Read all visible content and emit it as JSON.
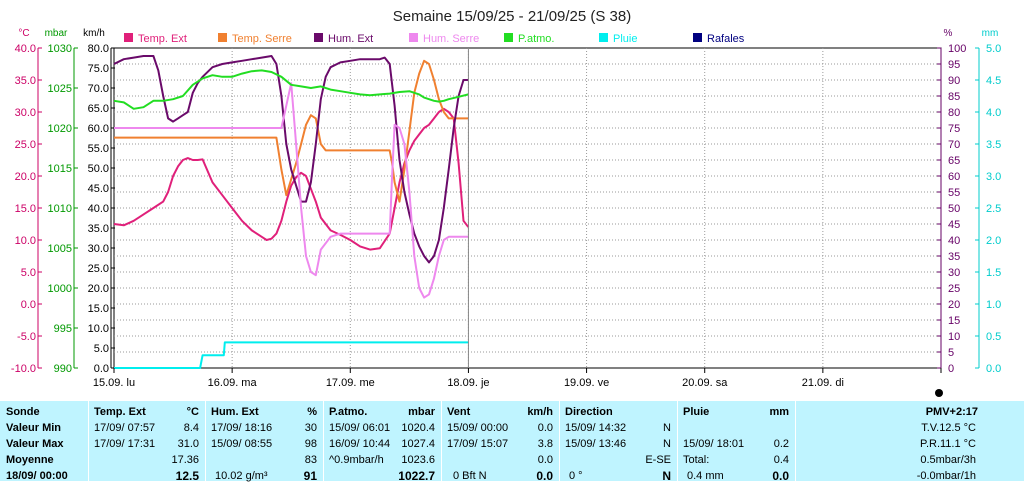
{
  "chart_data": {
    "type": "line",
    "title": "Semaine 15/09/25 - 21/09/25 (S 38)",
    "x_unit": "hours since 15.09 00:00",
    "xlim": [
      0,
      168
    ],
    "x_ticks": [
      {
        "x": 0,
        "label": "15.09.  lu"
      },
      {
        "x": 24,
        "label": "16.09.  ma"
      },
      {
        "x": 48,
        "label": "17.09.  me"
      },
      {
        "x": 72,
        "label": "18.09.  je"
      },
      {
        "x": 96,
        "label": "19.09.  ve"
      },
      {
        "x": 120,
        "label": "20.09.  sa"
      },
      {
        "x": 144,
        "label": "21.09.  di"
      }
    ],
    "axes": {
      "temp": {
        "unit": "°C",
        "color": "#cc0066",
        "min": -10,
        "max": 40,
        "ticks": [
          "40.0",
          "35.0",
          "30.0",
          "25.0",
          "20.0",
          "15.0",
          "10.0",
          "5.0",
          "0.0",
          "-5.0",
          "-10.0"
        ]
      },
      "pressure": {
        "unit": "mbar",
        "color": "#009900",
        "min": 990,
        "max": 1030,
        "ticks": [
          "1030",
          "1025",
          "1020",
          "1015",
          "1010",
          "1005",
          "1000",
          "995",
          "990"
        ]
      },
      "wind": {
        "unit": "km/h",
        "color": "#000000",
        "min": 0,
        "max": 80,
        "ticks": [
          "80.0",
          "75.0",
          "70.0",
          "65.0",
          "60.0",
          "55.0",
          "50.0",
          "45.0",
          "40.0",
          "35.0",
          "30.0",
          "25.0",
          "20.0",
          "15.0",
          "10.0",
          "5.0",
          "0.0"
        ]
      },
      "hum": {
        "unit": "%",
        "color": "#660066",
        "min": 0,
        "max": 100,
        "ticks": [
          "100",
          "95",
          "90",
          "85",
          "80",
          "75",
          "70",
          "65",
          "60",
          "55",
          "50",
          "45",
          "40",
          "35",
          "30",
          "25",
          "20",
          "15",
          "10",
          "5",
          "0"
        ]
      },
      "rain": {
        "unit": "mm",
        "color": "#00cccc",
        "min": 0,
        "max": 5,
        "ticks": [
          "5.0",
          "4.5",
          "4.0",
          "3.5",
          "3.0",
          "2.5",
          "2.0",
          "1.5",
          "1.0",
          "0.5",
          "0.0"
        ]
      }
    },
    "legend": [
      {
        "label": "Temp. Ext",
        "color": "#e0207a"
      },
      {
        "label": "Temp. Serre",
        "color": "#f08030"
      },
      {
        "label": "Hum. Ext",
        "color": "#6a0a6a"
      },
      {
        "label": "Hum. Serre",
        "color": "#ee88ee"
      },
      {
        "label": "P.atmo.",
        "color": "#22dd22"
      },
      {
        "label": "Pluie",
        "color": "#00eeee"
      },
      {
        "label": "Rafales",
        "color": "#000080"
      }
    ],
    "series": [
      {
        "name": "Temp. Ext",
        "axis": "temp",
        "color": "#e0207a",
        "x": [
          0,
          2,
          4,
          6,
          8,
          10,
          11,
          12,
          13,
          14,
          15,
          16,
          17,
          18,
          20,
          22,
          24,
          26,
          28,
          30,
          31,
          32,
          33,
          34,
          35,
          36,
          37,
          38,
          39,
          40,
          41,
          42,
          44,
          46,
          48,
          50,
          52,
          54,
          56,
          57,
          58,
          59,
          60,
          61,
          62,
          63,
          64,
          65,
          66,
          67,
          68,
          69,
          70,
          71,
          72
        ],
        "y": [
          12.5,
          12.3,
          13,
          14,
          15,
          16,
          17.5,
          20,
          21.5,
          22.5,
          22.8,
          22.5,
          22.5,
          22.6,
          19,
          17,
          15,
          13,
          11.5,
          10.5,
          10,
          10.2,
          11,
          13,
          16,
          18.5,
          19.8,
          20.5,
          20,
          18,
          16,
          13.5,
          11.5,
          10.8,
          10,
          9,
          8.5,
          8.7,
          11,
          15,
          19,
          22,
          24,
          25.5,
          26.5,
          27.5,
          28,
          29,
          30,
          30.5,
          30,
          29,
          22,
          13,
          12
        ]
      },
      {
        "name": "Temp. Serre",
        "axis": "temp",
        "color": "#f08030",
        "x": [
          0,
          33,
          34,
          35,
          36,
          37,
          38,
          39,
          40,
          41,
          42,
          43,
          48,
          52,
          56,
          56.5,
          57,
          58,
          59,
          60,
          61,
          62,
          63,
          64,
          65,
          66,
          67,
          68,
          72
        ],
        "y": [
          26,
          26,
          21,
          17,
          19.5,
          22,
          25,
          28,
          29.5,
          29,
          25,
          24,
          24,
          24,
          24,
          22,
          19,
          16,
          21,
          27,
          33,
          36,
          38,
          37.5,
          35,
          32,
          30,
          29,
          29
        ]
      },
      {
        "name": "Hum. Ext",
        "axis": "hum",
        "color": "#6a0a6a",
        "x": [
          0,
          2,
          4,
          6,
          8,
          9,
          10,
          11,
          12,
          13,
          14,
          15,
          16,
          17,
          18,
          20,
          22,
          24,
          26,
          28,
          30,
          32,
          33,
          34,
          35,
          36,
          37,
          38,
          39,
          40,
          41,
          42,
          43,
          44,
          46,
          48,
          50,
          52,
          54,
          55,
          56,
          57,
          58,
          59,
          60,
          61,
          62,
          63,
          64,
          65,
          66,
          67,
          68,
          69,
          70,
          71,
          72
        ],
        "y": [
          95,
          96.5,
          97,
          97.5,
          97.5,
          93,
          85,
          78,
          77,
          78,
          79,
          80,
          86,
          89,
          91,
          94,
          95,
          95.5,
          96,
          96.5,
          97,
          97.5,
          95,
          85,
          70,
          62,
          57,
          52,
          52,
          58,
          70,
          84,
          91,
          94,
          95.5,
          96,
          96.5,
          96.5,
          96.5,
          97,
          95,
          82,
          65,
          55,
          48,
          42,
          38,
          35,
          33,
          35,
          40,
          50,
          62,
          75,
          85,
          90,
          90
        ]
      },
      {
        "name": "Hum. Serre",
        "axis": "hum",
        "color": "#ee88ee",
        "x": [
          0,
          10,
          20,
          30,
          34,
          35,
          36,
          37,
          38,
          39,
          40,
          41,
          42,
          44,
          46,
          48,
          50,
          52,
          56,
          56.5,
          57,
          58,
          59,
          60,
          61,
          62,
          63,
          64,
          65,
          66,
          67,
          68,
          69,
          70,
          71,
          72
        ],
        "y": [
          75,
          75,
          75,
          75,
          75,
          82,
          89,
          70,
          50,
          35,
          30,
          29,
          37,
          41,
          42,
          42,
          42,
          42,
          42,
          60,
          76,
          75,
          70,
          55,
          35,
          25,
          22,
          23,
          28,
          35,
          40,
          41,
          41,
          41,
          41,
          41
        ]
      },
      {
        "name": "P.atmo.",
        "axis": "pressure",
        "color": "#22dd22",
        "x": [
          0,
          2,
          4,
          6,
          8,
          10,
          12,
          14,
          16,
          18,
          20,
          22,
          24,
          26,
          28,
          30,
          32,
          34,
          36,
          38,
          40,
          42,
          44,
          46,
          48,
          50,
          52,
          54,
          56,
          58,
          60,
          62,
          63,
          64,
          65,
          66,
          67,
          68,
          70,
          72
        ],
        "y": [
          1023.4,
          1023.2,
          1022.4,
          1022.6,
          1023.4,
          1023.4,
          1023.6,
          1024,
          1025.4,
          1026.2,
          1026.6,
          1026.4,
          1026.4,
          1026.8,
          1027.1,
          1027.2,
          1027.0,
          1026.4,
          1025.4,
          1025.2,
          1025.0,
          1025.2,
          1024.8,
          1024.6,
          1024.4,
          1024.2,
          1024.1,
          1024.2,
          1024.3,
          1024.5,
          1024.6,
          1024.2,
          1023.8,
          1023.6,
          1023.4,
          1023.3,
          1023.4,
          1023.6,
          1023.9,
          1024.2
        ]
      },
      {
        "name": "Pluie",
        "axis": "rain",
        "color": "#00eeee",
        "x": [
          0,
          17.5,
          18,
          22.3,
          22.5,
          24,
          72
        ],
        "y": [
          0,
          0,
          0.2,
          0.2,
          0.4,
          0.4,
          0.4
        ]
      }
    ],
    "grid": true
  },
  "panel": {
    "sonde": {
      "header": "Sonde",
      "rows": [
        "Valeur Min",
        "Valeur Max",
        "Moyenne",
        "18/09/ 00:00"
      ]
    },
    "temp_ext": {
      "header": "Temp. Ext",
      "unit": "°C",
      "min_time": "17/09/ 07:57",
      "min_val": "8.4",
      "max_time": "17/09/ 17:31",
      "max_val": "31.0",
      "avg": "17.36",
      "current": "12.5"
    },
    "hum_ext": {
      "header": "Hum. Ext",
      "unit": "%",
      "min_time": "17/09/ 18:16",
      "min_val": "30",
      "max_time": "15/09/ 08:55",
      "max_val": "98",
      "avg": "83",
      "current_extra": "10.02 g/m³",
      "current": "91"
    },
    "patmo": {
      "header": "P.atmo.",
      "unit": "mbar",
      "min_time": "15/09/ 06:01",
      "min_val": "1020.4",
      "max_time": "16/09/ 10:44",
      "max_val": "1027.4",
      "avg_label": "^0.9mbar/h",
      "avg": "1023.6",
      "current": "1022.7"
    },
    "vent": {
      "header": "Vent",
      "unit": "km/h",
      "min_time": "15/09/ 00:00",
      "min_val": "0.0",
      "max_time": "17/09/ 15:07",
      "max_val": "3.8",
      "avg": "0.0",
      "current_extra": "0 Bft N",
      "current": "0.0"
    },
    "direction": {
      "header": "Direction",
      "min_time": "15/09/ 14:32",
      "min_val": "N",
      "max_time": "15/09/ 13:46",
      "max_val": "N",
      "avg": "E-SE",
      "current_extra": "0 °",
      "current": "N"
    },
    "pluie": {
      "header": "Pluie",
      "unit": "mm",
      "max_time": "15/09/ 18:01",
      "max_val": "0.2",
      "total_label": "Total:",
      "total": "0.4",
      "current_extra": "0.4 mm",
      "current": "0.0"
    },
    "pmv": {
      "header": "PMV+2:17",
      "tv": "T.V.12.5 °C",
      "pr": "P.R.11.1 °C",
      "rate": "0.5mbar/3h",
      "trend": "-0.0mbar/1h"
    }
  }
}
